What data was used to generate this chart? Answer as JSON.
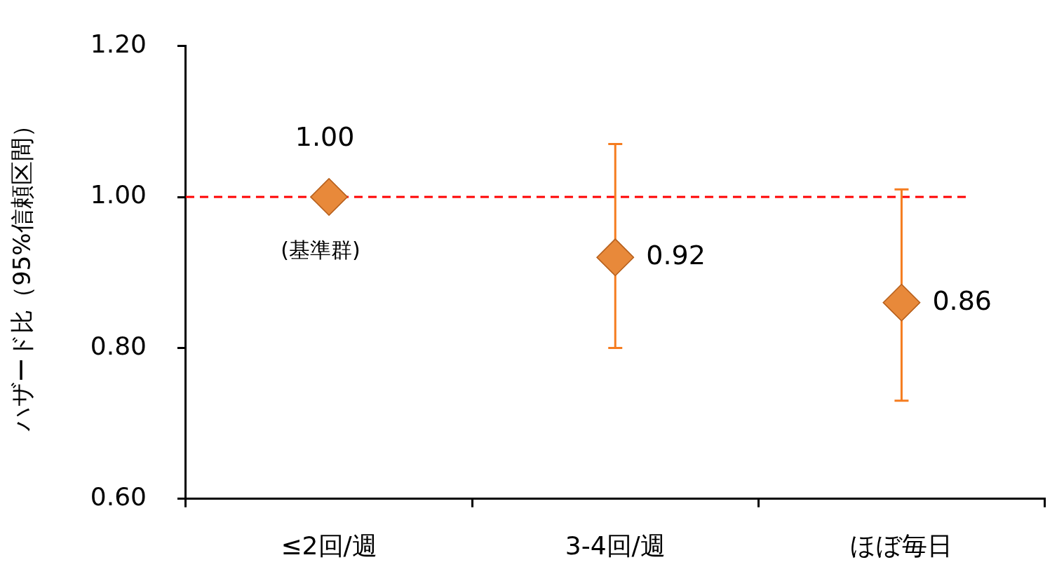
{
  "chart_data": {
    "type": "scatter",
    "ylabel": "ハザード比（95%信頼区間）",
    "categories": [
      "≤2回/週",
      "3-4回/週",
      "ほぼ毎日"
    ],
    "values": [
      1.0,
      0.92,
      0.86
    ],
    "errors": [
      null,
      [
        0.8,
        1.07
      ],
      [
        0.73,
        1.01
      ]
    ],
    "color": "#e8893a",
    "marker": "diamond",
    "value_labels": [
      "1.00",
      "0.92",
      "0.86"
    ],
    "ylim": [
      0.6,
      1.2
    ],
    "yticks": [
      {
        "value": 0.6,
        "label": "0.60"
      },
      {
        "value": 0.8,
        "label": "0.80"
      },
      {
        "value": 1.0,
        "label": "1.00"
      },
      {
        "value": 1.2,
        "label": "1.20"
      }
    ],
    "ref_lines": [
      {
        "axis": "y",
        "value": 1.0,
        "color": "#ff0000",
        "line_style": "dashed"
      }
    ],
    "annotations": [
      {
        "text": "(基準群)",
        "x": "≤2回/週",
        "y": 1.0
      }
    ],
    "grid": false,
    "legend": false
  }
}
